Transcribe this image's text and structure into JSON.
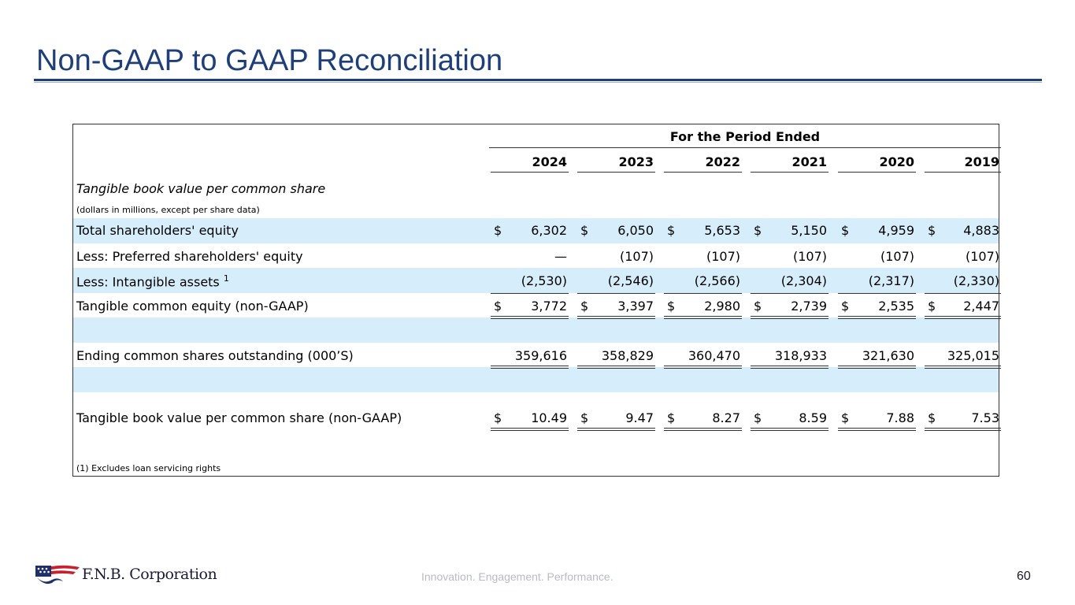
{
  "slide": {
    "title": "Non-GAAP to GAAP Reconciliation",
    "tagline": "Innovation. Engagement. Performance.",
    "page_number": "60",
    "logo_text": "F.N.B. Corporation"
  },
  "table": {
    "period_header": "For the Period Ended",
    "years": [
      "2024",
      "2023",
      "2022",
      "2021",
      "2020",
      "2019"
    ],
    "section_title": "Tangible book value per common share",
    "units_note": "(dollars in millions, except per share data)",
    "footnote": "(1) Excludes loan servicing rights",
    "currency_symbol": "$",
    "rows": {
      "total_equity": {
        "label": "Total shareholders' equity",
        "values": [
          "6,302",
          "6,050",
          "5,653",
          "5,150",
          "4,959",
          "4,883"
        ]
      },
      "preferred": {
        "label": "Less: Preferred shareholders' equity",
        "values": [
          "—",
          "(107)",
          "(107)",
          "(107)",
          "(107)",
          "(107)"
        ]
      },
      "intangibles": {
        "label": "Less: Intangible assets",
        "footnote_ref": "1",
        "values": [
          "(2,530)",
          "(2,546)",
          "(2,566)",
          "(2,304)",
          "(2,317)",
          "(2,330)"
        ]
      },
      "tangible_equity": {
        "label": "Tangible common equity (non-GAAP)",
        "values": [
          "3,772",
          "3,397",
          "2,980",
          "2,739",
          "2,535",
          "2,447"
        ]
      },
      "shares": {
        "label": "Ending common shares outstanding (000’S)",
        "values": [
          "359,616",
          "358,829",
          "360,470",
          "318,933",
          "321,630",
          "325,015"
        ]
      },
      "tbvps": {
        "label": "Tangible book value per common share (non-GAAP)",
        "values": [
          "10.49",
          "9.47",
          "8.27",
          "8.59",
          "7.88",
          "7.53"
        ]
      }
    }
  }
}
